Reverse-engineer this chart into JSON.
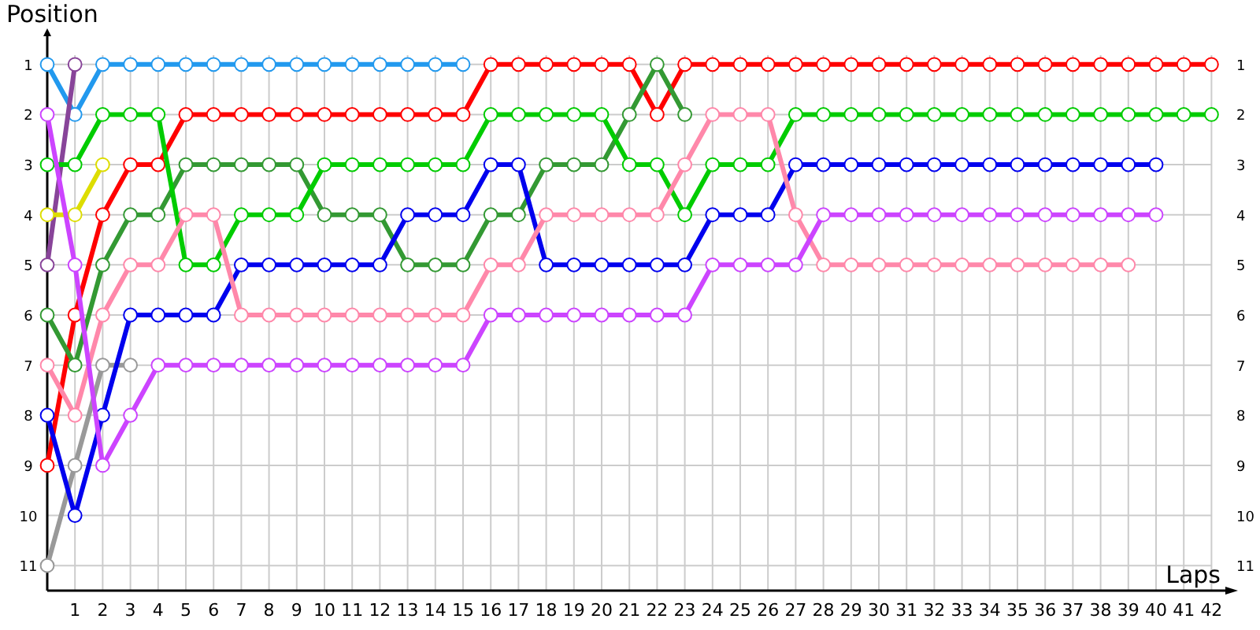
{
  "chart_data": {
    "type": "line",
    "xlabel": "Laps",
    "ylabel": "Position",
    "x": [
      0,
      1,
      2,
      3,
      4,
      5,
      6,
      7,
      8,
      9,
      10,
      11,
      12,
      13,
      14,
      15,
      16,
      17,
      18,
      19,
      20,
      21,
      22,
      23,
      24,
      25,
      26,
      27,
      28,
      29,
      30,
      31,
      32,
      33,
      34,
      35,
      36,
      37,
      38,
      39,
      40,
      41,
      42
    ],
    "xlim": [
      0,
      42.5
    ],
    "xticks": [
      1,
      2,
      3,
      4,
      5,
      6,
      7,
      8,
      9,
      10,
      11,
      12,
      13,
      14,
      15,
      16,
      17,
      18,
      19,
      20,
      21,
      22,
      23,
      24,
      25,
      26,
      27,
      28,
      29,
      30,
      31,
      32,
      33,
      34,
      35,
      36,
      37,
      38,
      39,
      40,
      41,
      42
    ],
    "ylim": [
      11.5,
      0.5
    ],
    "yticks": [
      1,
      2,
      3,
      4,
      5,
      6,
      7,
      8,
      9,
      10,
      11
    ],
    "y2lim": [
      11.5,
      0.5
    ],
    "y2ticks": [
      1,
      2,
      3,
      4,
      5,
      6,
      7,
      8,
      9,
      10,
      11
    ],
    "grid": true,
    "marker": "circle",
    "line_style": "solid",
    "series": [
      {
        "color": "#2299ee",
        "values": [
          1,
          2,
          1,
          1,
          1,
          1,
          1,
          1,
          1,
          1,
          1,
          1,
          1,
          1,
          1,
          1,
          null,
          null,
          null,
          null,
          null,
          null,
          null,
          null,
          null,
          null,
          null,
          null,
          null,
          null,
          null,
          null,
          null,
          null,
          null,
          null,
          null,
          null,
          null,
          null,
          null,
          null,
          null
        ]
      },
      {
        "color": "#884499",
        "values": [
          5,
          1,
          null,
          null,
          null,
          null,
          null,
          null,
          null,
          null,
          null,
          null,
          null,
          null,
          null,
          null,
          null,
          null,
          null,
          null,
          null,
          null,
          null,
          null,
          null,
          null,
          null,
          null,
          null,
          null,
          null,
          null,
          null,
          null,
          null,
          null,
          null,
          null,
          null,
          null,
          null,
          null,
          null
        ]
      },
      {
        "color": "#dddd00",
        "values": [
          4,
          4,
          3,
          null,
          null,
          null,
          null,
          null,
          null,
          null,
          null,
          null,
          null,
          null,
          null,
          null,
          null,
          null,
          null,
          null,
          null,
          null,
          null,
          null,
          null,
          null,
          null,
          null,
          null,
          null,
          null,
          null,
          null,
          null,
          null,
          null,
          null,
          null,
          null,
          null,
          null,
          null,
          null
        ]
      },
      {
        "color": "#999999",
        "values": [
          11,
          9,
          7,
          7,
          null,
          null,
          null,
          null,
          null,
          null,
          null,
          null,
          null,
          null,
          null,
          null,
          null,
          null,
          null,
          null,
          null,
          null,
          null,
          null,
          null,
          null,
          null,
          null,
          null,
          null,
          null,
          null,
          null,
          null,
          null,
          null,
          null,
          null,
          null,
          null,
          null,
          null,
          null
        ]
      },
      {
        "color": "#ff0000",
        "values": [
          9,
          6,
          4,
          3,
          3,
          2,
          2,
          2,
          2,
          2,
          2,
          2,
          2,
          2,
          2,
          2,
          1,
          1,
          1,
          1,
          1,
          1,
          2,
          1,
          1,
          1,
          1,
          1,
          1,
          1,
          1,
          1,
          1,
          1,
          1,
          1,
          1,
          1,
          1,
          1,
          1,
          1,
          1
        ]
      },
      {
        "color": "#339933",
        "values": [
          6,
          7,
          5,
          4,
          4,
          3,
          3,
          3,
          3,
          3,
          4,
          4,
          4,
          5,
          5,
          5,
          4,
          4,
          3,
          3,
          3,
          2,
          1,
          2,
          null,
          null,
          null,
          null,
          null,
          null,
          null,
          null,
          null,
          null,
          null,
          null,
          null,
          null,
          null,
          null,
          null,
          null,
          null
        ]
      },
      {
        "color": "#00cc00",
        "values": [
          3,
          3,
          2,
          2,
          2,
          5,
          5,
          4,
          4,
          4,
          3,
          3,
          3,
          3,
          3,
          3,
          2,
          2,
          2,
          2,
          2,
          3,
          3,
          4,
          3,
          3,
          3,
          2,
          2,
          2,
          2,
          2,
          2,
          2,
          2,
          2,
          2,
          2,
          2,
          2,
          2,
          2,
          2
        ]
      },
      {
        "color": "#0000ee",
        "values": [
          8,
          10,
          8,
          6,
          6,
          6,
          6,
          5,
          5,
          5,
          5,
          5,
          5,
          4,
          4,
          4,
          3,
          3,
          5,
          5,
          5,
          5,
          5,
          5,
          4,
          4,
          4,
          3,
          3,
          3,
          3,
          3,
          3,
          3,
          3,
          3,
          3,
          3,
          3,
          3,
          3,
          null,
          null
        ]
      },
      {
        "color": "#ff88aa",
        "values": [
          7,
          8,
          6,
          5,
          5,
          4,
          4,
          6,
          6,
          6,
          6,
          6,
          6,
          6,
          6,
          6,
          5,
          5,
          4,
          4,
          4,
          4,
          4,
          3,
          2,
          2,
          2,
          4,
          5,
          5,
          5,
          5,
          5,
          5,
          5,
          5,
          5,
          5,
          5,
          5,
          null,
          null,
          null
        ]
      },
      {
        "color": "#cc44ff",
        "values": [
          2,
          5,
          9,
          8,
          7,
          7,
          7,
          7,
          7,
          7,
          7,
          7,
          7,
          7,
          7,
          7,
          6,
          6,
          6,
          6,
          6,
          6,
          6,
          6,
          5,
          5,
          5,
          5,
          4,
          4,
          4,
          4,
          4,
          4,
          4,
          4,
          4,
          4,
          4,
          4,
          4,
          null,
          null
        ]
      }
    ]
  }
}
